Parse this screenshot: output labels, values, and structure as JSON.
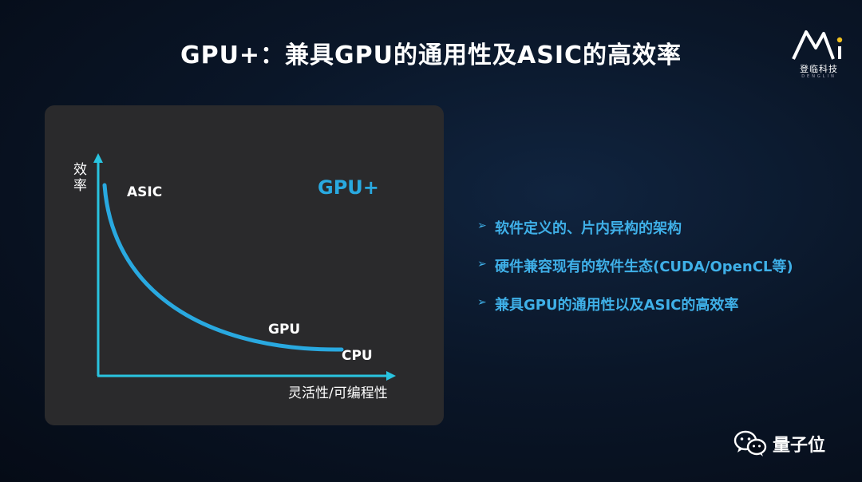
{
  "header": {
    "title": "GPU+：兼具GPU的通用性及ASIC的高效率"
  },
  "logo": {
    "mark": "AI",
    "name": "登临科技",
    "sub": "DENGLIN"
  },
  "chart_data": {
    "type": "line",
    "ylabel": "效率",
    "xlabel": "灵活性/可编程性",
    "highlight_label": "GPU+",
    "points": [
      "ASIC",
      "GPU",
      "CPU"
    ],
    "colors": {
      "curve": "#29a9e0",
      "axis": "#29c4e0",
      "panel": "#2a2a2c"
    }
  },
  "bullets": [
    "软件定义的、片内异构的架构",
    "硬件兼容现有的软件生态(CUDA/OpenCL等)",
    "兼具GPU的通用性以及ASIC的高效率"
  ],
  "watermark": {
    "text": "量子位",
    "icon": "wechat-icon"
  }
}
